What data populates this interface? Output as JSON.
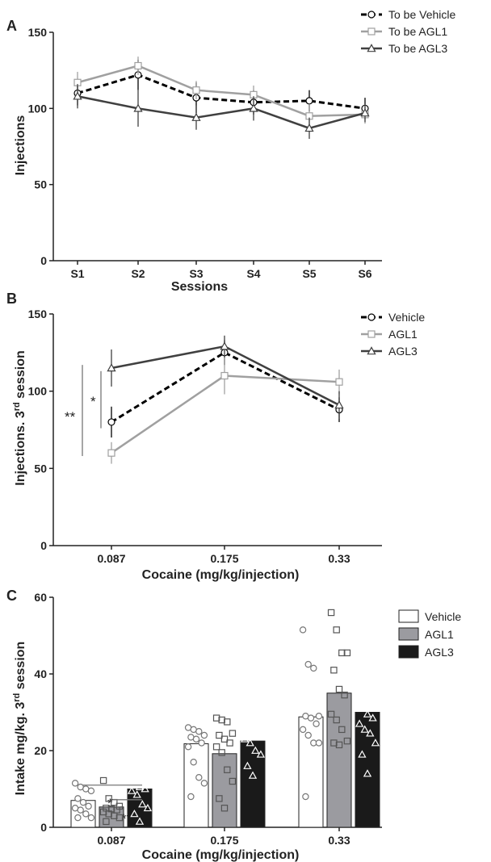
{
  "chart_data": [
    {
      "panel": "A",
      "type": "line",
      "title": "",
      "xlabel": "Sessions",
      "ylabel": "Injections",
      "categories": [
        "S1",
        "S2",
        "S3",
        "S4",
        "S5",
        "S6"
      ],
      "ylim": [
        0,
        150
      ],
      "yticks": [
        0,
        50,
        100,
        150
      ],
      "legend_placement": "top-right",
      "series": [
        {
          "name": "To be Vehicle",
          "color": "#000000",
          "dash": true,
          "marker": "circle",
          "values": [
            110,
            122,
            107,
            104,
            105,
            100
          ],
          "err": [
            8,
            10,
            10,
            8,
            7,
            7
          ]
        },
        {
          "name": "To be AGL1",
          "color": "#a0a0a0",
          "dash": false,
          "marker": "square",
          "values": [
            117,
            128,
            112,
            109,
            95,
            96
          ],
          "err": [
            7,
            6,
            6,
            6,
            8,
            6
          ]
        },
        {
          "name": "To be AGL3",
          "color": "#404040",
          "dash": false,
          "marker": "triangle",
          "values": [
            108,
            100,
            94,
            100,
            87,
            97
          ],
          "err": [
            8,
            12,
            8,
            8,
            7,
            6
          ]
        }
      ]
    },
    {
      "panel": "B",
      "type": "line",
      "title": "",
      "xlabel": "Cocaine (mg/kg/injection)",
      "ylabel_main": "Injections. 3",
      "ylabel_sup": "rd",
      "ylabel_end": " session",
      "categories": [
        "0.087",
        "0.175",
        "0.33"
      ],
      "ylim": [
        0,
        150
      ],
      "yticks": [
        0,
        50,
        100,
        150
      ],
      "legend_placement": "top-right",
      "series": [
        {
          "name": "Vehicle",
          "color": "#000000",
          "dash": true,
          "marker": "circle",
          "values": [
            80,
            125,
            88
          ],
          "err": [
            10,
            8,
            8
          ]
        },
        {
          "name": "AGL1",
          "color": "#a0a0a0",
          "dash": false,
          "marker": "square",
          "values": [
            60,
            110,
            106
          ],
          "err": [
            7,
            12,
            8
          ]
        },
        {
          "name": "AGL3",
          "color": "#404040",
          "dash": false,
          "marker": "triangle",
          "values": [
            115,
            129,
            91
          ],
          "err": [
            12,
            7,
            9
          ]
        }
      ],
      "annotations": [
        "**",
        "*"
      ]
    },
    {
      "panel": "C",
      "type": "bar",
      "title": "",
      "xlabel": "Cocaine (mg/kg/injection)",
      "ylabel_main": "Intake mg/kg. 3",
      "ylabel_sup": "rd",
      "ylabel_end": " session",
      "categories": [
        "0.087",
        "0.175",
        "0.33"
      ],
      "ylim": [
        0,
        60
      ],
      "yticks": [
        0,
        20,
        40,
        60
      ],
      "legend_placement": "top-right",
      "series": [
        {
          "name": "Vehicle",
          "fill": "#ffffff",
          "marker": "circle",
          "values": [
            7,
            21.8,
            28.8
          ],
          "points": [
            [
              11.5,
              10.5,
              10,
              9.5,
              7.5,
              6.5,
              5.5,
              5,
              4.5,
              3.5,
              2.5,
              2.5
            ],
            [
              26,
              25.5,
              25,
              24,
              23.5,
              23,
              22,
              21,
              17,
              13,
              11.5,
              8
            ],
            [
              51.5,
              42.5,
              41.5,
              29,
              29,
              28.5,
              27,
              25.5,
              24,
              22,
              22,
              8
            ]
          ]
        },
        {
          "name": "AGL1",
          "fill": "#9b9ba0",
          "marker": "square",
          "values": [
            5.3,
            19.2,
            35
          ],
          "points": [
            [
              12.2,
              7.5,
              6.5,
              5.5,
              5,
              4.8,
              4.5,
              4,
              3.5,
              3,
              2.5,
              1.5
            ],
            [
              28.5,
              28,
              27.5,
              24.5,
              24,
              23,
              22,
              21,
              19.5,
              15,
              12,
              7.5,
              5
            ],
            [
              56,
              51.5,
              45.5,
              45.5,
              41,
              36,
              34.5,
              29.5,
              28,
              25.5,
              22.5,
              22,
              21.5
            ]
          ]
        },
        {
          "name": "AGL3",
          "fill": "#1a1a1a",
          "marker": "triangle",
          "values": [
            10,
            22.5,
            30
          ],
          "points": [
            [
              12.5,
              12,
              11.8,
              11.5,
              11,
              10.5,
              10,
              9.5,
              8.5,
              6,
              5,
              3.5,
              1.5
            ],
            [
              29,
              27,
              26,
              25,
              24.5,
              24,
              23.5,
              23,
              22,
              20,
              19,
              16,
              13.5
            ],
            [
              53.5,
              51,
              42,
              34,
              33.5,
              29.5,
              28.5,
              27,
              25.5,
              24.5,
              22,
              19,
              14
            ]
          ]
        }
      ],
      "annotations": [
        "*",
        "**"
      ]
    }
  ],
  "panel_letters": [
    "A",
    "B",
    "C"
  ],
  "significance": {
    "b_double": "**",
    "b_single": "*",
    "c_single": "*",
    "c_double": "**"
  }
}
